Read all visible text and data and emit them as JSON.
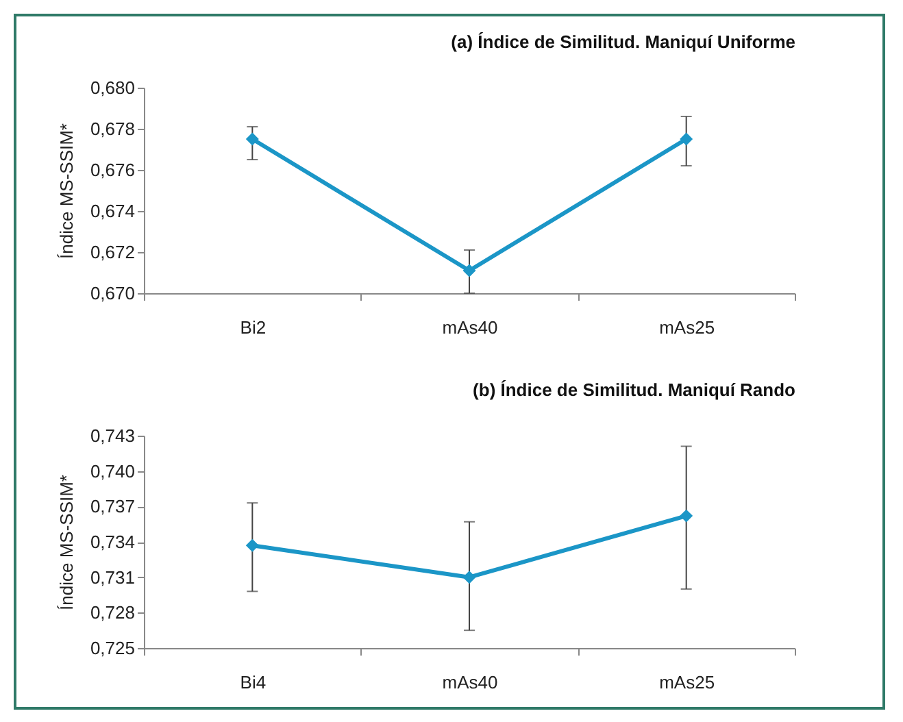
{
  "chart_data": [
    {
      "type": "line",
      "title": "(a) Índice de Similitud. Maniquí Uniforme",
      "ylabel": "Índice MS-SSIM*",
      "categories": [
        "Bi2",
        "mAs40",
        "mAs25"
      ],
      "series": [
        {
          "color": "#1b96c7",
          "values": [
            0.6775,
            0.6711,
            0.6775
          ],
          "errors": [
            [
              0.6765,
              0.6781
            ],
            [
              0.67,
              0.6721
            ],
            [
              0.6762,
              0.6786
            ]
          ]
        }
      ],
      "ylim": [
        0.67,
        0.68
      ],
      "yticks": [
        {
          "value": 0.67,
          "label": "0,670"
        },
        {
          "value": 0.672,
          "label": "0,672"
        },
        {
          "value": 0.674,
          "label": "0,674"
        },
        {
          "value": 0.676,
          "label": "0,676"
        },
        {
          "value": 0.678,
          "label": "0,678"
        },
        {
          "value": 0.68,
          "label": "0,680"
        }
      ],
      "marker": "diamond",
      "grid": false
    },
    {
      "type": "line",
      "title": "(b) Índice de Similitud. Maniquí Rando",
      "ylabel": "Índice MS-SSIM*",
      "categories": [
        "Bi4",
        "mAs40",
        "mAs25"
      ],
      "series": [
        {
          "color": "#1b96c7",
          "values": [
            0.7337,
            0.731,
            0.7362
          ],
          "errors": [
            [
              0.7298,
              0.7373
            ],
            [
              0.7265,
              0.7357
            ],
            [
              0.73,
              0.7421
            ]
          ]
        }
      ],
      "ylim": [
        0.725,
        0.743
      ],
      "yticks": [
        {
          "value": 0.725,
          "label": "0,725"
        },
        {
          "value": 0.728,
          "label": "0,728"
        },
        {
          "value": 0.731,
          "label": "0,731"
        },
        {
          "value": 0.734,
          "label": "0,734"
        },
        {
          "value": 0.737,
          "label": "0,737"
        },
        {
          "value": 0.74,
          "label": "0,740"
        },
        {
          "value": 0.743,
          "label": "0,743"
        }
      ],
      "marker": "diamond",
      "grid": false
    }
  ]
}
